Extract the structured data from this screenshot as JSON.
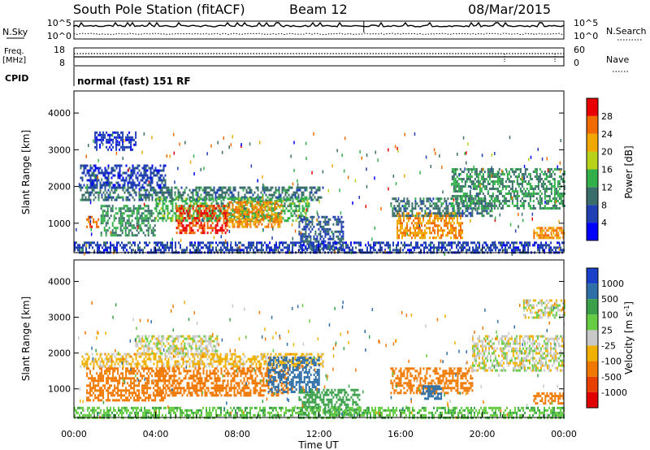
{
  "header": {
    "station": "South Pole Station (fitACF)",
    "beam": "Beam 12",
    "date": "08/Mar/2015"
  },
  "strip": {
    "nsky_label": "N.Sky",
    "nsky_top": "10^5",
    "nsky_bottom": "10^0",
    "nsearch_label": "N.Search",
    "nsearch_top": "10^5",
    "nsearch_bottom": "10^0",
    "freq_label_line1": "Freq.",
    "freq_label_line2": "[MHz]",
    "freq_top": "18",
    "freq_bottom": "8",
    "nave_label": "Nave",
    "nave_top": "60",
    "nave_bottom": "0",
    "cpid_label": "CPID",
    "cpid_value": "normal (fast) 151 RF"
  },
  "chart_data": [
    {
      "type": "heatmap",
      "panel": "power",
      "ylabel": "Slant Range [km]",
      "yticks": [
        "1000",
        "2000",
        "3000",
        "4000"
      ],
      "ylim": [
        200,
        4600
      ],
      "xlim_hours": [
        0,
        24
      ],
      "colorbar": {
        "label": "Power [dB]",
        "ticks": [
          "4",
          "8",
          "12",
          "16",
          "20",
          "24",
          "28"
        ],
        "range": [
          0,
          32
        ],
        "colors": [
          "#0000ff",
          "#1f3fb2",
          "#3a6e6a",
          "#33b04a",
          "#b8d21c",
          "#f0a800",
          "#f06a00",
          "#e80000"
        ]
      },
      "regions": [
        {
          "t0": 0.3,
          "t1": 12.2,
          "r0": 1650,
          "r1": 2000,
          "level": 10
        },
        {
          "t0": 0.3,
          "t1": 4.5,
          "r0": 2000,
          "r1": 2600,
          "level": 6
        },
        {
          "t0": 1.0,
          "t1": 3.0,
          "r0": 3000,
          "r1": 3500,
          "level": 5
        },
        {
          "t0": 0.6,
          "t1": 1.2,
          "r0": 900,
          "r1": 1200,
          "level": 26
        },
        {
          "t0": 1.3,
          "t1": 4.0,
          "r0": 700,
          "r1": 1500,
          "level": 12
        },
        {
          "t0": 4.0,
          "t1": 11.5,
          "r0": 1100,
          "r1": 1700,
          "level": 14
        },
        {
          "t0": 5.0,
          "t1": 7.5,
          "r0": 750,
          "r1": 1500,
          "level": 28
        },
        {
          "t0": 7.5,
          "t1": 10.2,
          "r0": 900,
          "r1": 1600,
          "level": 24
        },
        {
          "t0": 11.0,
          "t1": 13.2,
          "r0": 300,
          "r1": 1200,
          "level": 8
        },
        {
          "t0": 15.8,
          "t1": 19.0,
          "r0": 600,
          "r1": 1300,
          "level": 24
        },
        {
          "t0": 15.5,
          "t1": 20.5,
          "r0": 1200,
          "r1": 1700,
          "level": 10
        },
        {
          "t0": 18.5,
          "t1": 24.0,
          "r0": 1400,
          "r1": 2500,
          "level": 12
        },
        {
          "t0": 22.5,
          "t1": 24.0,
          "r0": 600,
          "r1": 900,
          "level": 24
        },
        {
          "t0": 0.0,
          "t1": 24.0,
          "r0": 200,
          "r1": 500,
          "level": 6
        }
      ]
    },
    {
      "type": "heatmap",
      "panel": "velocity",
      "ylabel": "Slant Range [km]",
      "yticks": [
        "1000",
        "2000",
        "3000",
        "4000"
      ],
      "ylim": [
        200,
        4600
      ],
      "xlabel": "Time UT",
      "xticks": [
        "00:00",
        "04:00",
        "08:00",
        "12:00",
        "16:00",
        "20:00",
        "00:00"
      ],
      "xlim_hours": [
        0,
        24
      ],
      "colorbar": {
        "label": "Velocity [m s",
        "label_sup": "-1",
        "label_end": "]",
        "ticks": [
          "1000",
          "500",
          "100",
          "25",
          "-25",
          "-100",
          "-500",
          "-1000"
        ],
        "colors": [
          "#1a3fc8",
          "#2f6fa8",
          "#3aa04a",
          "#66cc44",
          "#c8c8c8",
          "#f0b000",
          "#f07800",
          "#e84000",
          "#e00000"
        ]
      },
      "regions": [
        {
          "t0": 0.3,
          "t1": 12.2,
          "r0": 1650,
          "r1": 2000,
          "level": -50
        },
        {
          "t0": 3.0,
          "t1": 7.0,
          "r0": 2000,
          "r1": 2500,
          "level": 0
        },
        {
          "t0": 0.6,
          "t1": 4.5,
          "r0": 700,
          "r1": 1600,
          "level": -300
        },
        {
          "t0": 4.0,
          "t1": 10.5,
          "r0": 800,
          "r1": 1600,
          "level": -300
        },
        {
          "t0": 9.5,
          "t1": 12.0,
          "r0": 900,
          "r1": 1900,
          "level": 600
        },
        {
          "t0": 11.0,
          "t1": 14.0,
          "r0": 300,
          "r1": 1000,
          "level": 200
        },
        {
          "t0": 15.5,
          "t1": 19.5,
          "r0": 900,
          "r1": 1600,
          "level": -300
        },
        {
          "t0": 17.0,
          "t1": 18.0,
          "r0": 700,
          "r1": 1100,
          "level": 800
        },
        {
          "t0": 19.5,
          "t1": 24.0,
          "r0": 1500,
          "r1": 2500,
          "level": 0
        },
        {
          "t0": 22.0,
          "t1": 24.0,
          "r0": 3000,
          "r1": 3500,
          "level": 0
        },
        {
          "t0": 22.5,
          "t1": 24.0,
          "r0": 600,
          "r1": 900,
          "level": -300
        },
        {
          "t0": 0.0,
          "t1": 24.0,
          "r0": 200,
          "r1": 500,
          "level": 80
        }
      ]
    }
  ]
}
